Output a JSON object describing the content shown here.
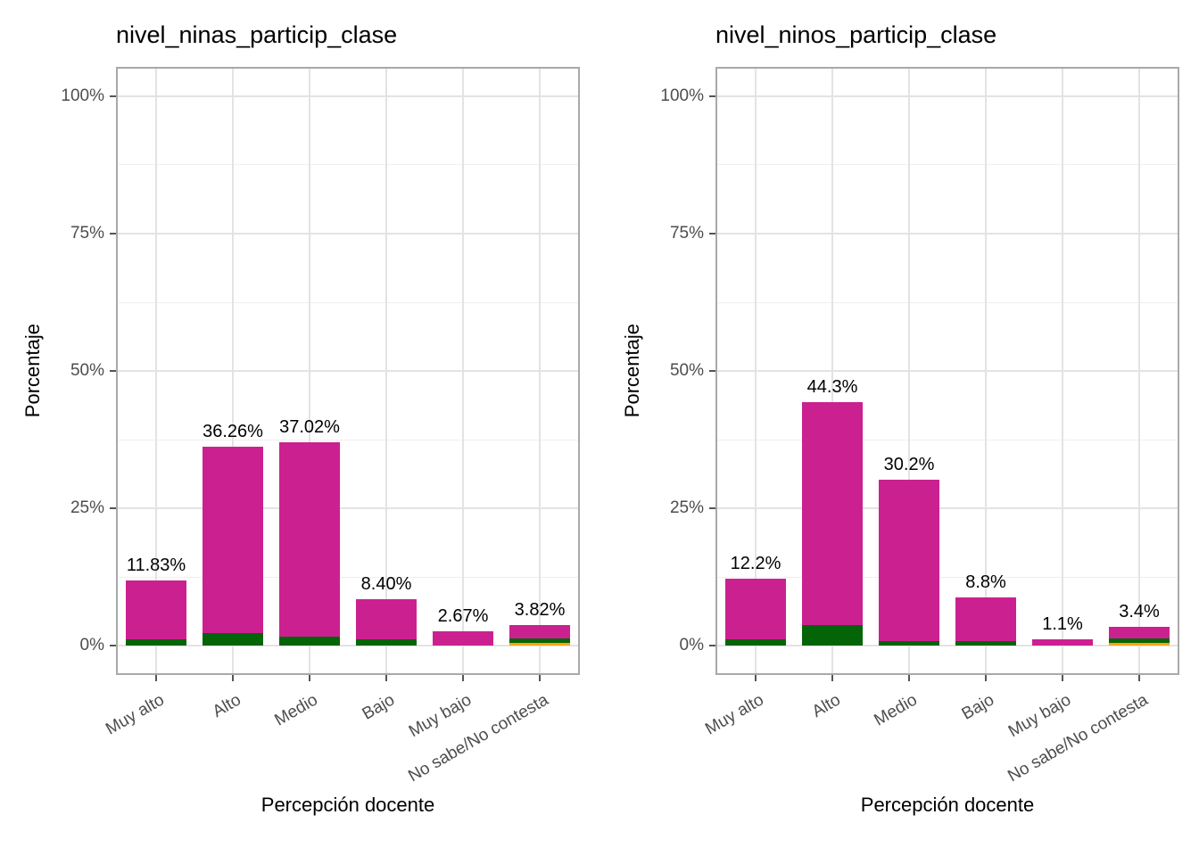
{
  "page": {
    "background": "#ffffff"
  },
  "y_axis": {
    "title": "Porcentaje",
    "tick_labels": [
      "0%",
      "25%",
      "50%",
      "75%",
      "100%"
    ],
    "tick_values": [
      0,
      25,
      50,
      75,
      100
    ],
    "minor_tick_values": [
      12.5,
      37.5,
      62.5,
      87.5
    ],
    "range": [
      0,
      100
    ],
    "expansion_mult": 0.05
  },
  "x_axis": {
    "title": "Percepción docente",
    "categories": [
      "Muy alto",
      "Alto",
      "Medio",
      "Bajo",
      "Muy bajo",
      "No sabe/No contesta"
    ],
    "label_angle_deg": 30
  },
  "colors": {
    "bar_magenta": "#CB2190",
    "bar_green": "#046408",
    "bar_orange": "#FFA502",
    "grid_major": "#E3E3E3",
    "grid_minor": "#EFEFEF",
    "panel_border": "#A9A9A9",
    "axis_tick": "#555555",
    "tick_label_text": "#4D4D4D",
    "value_label_text": "#000000"
  },
  "segment_order_bottom_to_top": [
    "orange",
    "green",
    "magenta"
  ],
  "chart_data": [
    {
      "type": "bar",
      "stacked": true,
      "title": "nivel_ninas_particip_clase",
      "xlabel": "Percepción docente",
      "ylabel": "Porcentaje",
      "ylim": [
        0,
        100
      ],
      "grid": true,
      "legend_position": "none",
      "categories": [
        "Muy alto",
        "Alto",
        "Medio",
        "Bajo",
        "Muy bajo",
        "No sabe/No contesta"
      ],
      "bars": [
        {
          "category": "Muy alto",
          "total": 11.83,
          "label": "11.83%",
          "segments": {
            "magenta": 10.63,
            "green": 1.2,
            "orange": 0
          }
        },
        {
          "category": "Alto",
          "total": 36.26,
          "label": "36.26%",
          "segments": {
            "magenta": 33.96,
            "green": 2.3,
            "orange": 0
          }
        },
        {
          "category": "Medio",
          "total": 37.02,
          "label": "37.02%",
          "segments": {
            "magenta": 35.32,
            "green": 1.7,
            "orange": 0
          }
        },
        {
          "category": "Bajo",
          "total": 8.4,
          "label": "8.40%",
          "segments": {
            "magenta": 7.2,
            "green": 1.2,
            "orange": 0
          }
        },
        {
          "category": "Muy bajo",
          "total": 2.67,
          "label": "2.67%",
          "segments": {
            "magenta": 2.67,
            "green": 0,
            "orange": 0
          }
        },
        {
          "category": "No sabe/No contesta",
          "total": 3.82,
          "label": "3.82%",
          "segments": {
            "magenta": 2.42,
            "green": 0.85,
            "orange": 0.55
          }
        }
      ]
    },
    {
      "type": "bar",
      "stacked": true,
      "title": "nivel_ninos_particip_clase",
      "xlabel": "Percepción docente",
      "ylabel": "Porcentaje",
      "ylim": [
        0,
        100
      ],
      "grid": true,
      "legend_position": "none",
      "categories": [
        "Muy alto",
        "Alto",
        "Medio",
        "Bajo",
        "Muy bajo",
        "No sabe/No contesta"
      ],
      "bars": [
        {
          "category": "Muy alto",
          "total": 12.2,
          "label": "12.2%",
          "segments": {
            "magenta": 11.0,
            "green": 1.2,
            "orange": 0
          }
        },
        {
          "category": "Alto",
          "total": 44.3,
          "label": "44.3%",
          "segments": {
            "magenta": 40.6,
            "green": 3.7,
            "orange": 0
          }
        },
        {
          "category": "Medio",
          "total": 30.2,
          "label": "30.2%",
          "segments": {
            "magenta": 29.3,
            "green": 0.9,
            "orange": 0
          }
        },
        {
          "category": "Bajo",
          "total": 8.8,
          "label": "8.8%",
          "segments": {
            "magenta": 8.0,
            "green": 0.8,
            "orange": 0
          }
        },
        {
          "category": "Muy bajo",
          "total": 1.1,
          "label": "1.1%",
          "segments": {
            "magenta": 1.1,
            "green": 0,
            "orange": 0
          }
        },
        {
          "category": "No sabe/No contesta",
          "total": 3.4,
          "label": "3.4%",
          "segments": {
            "magenta": 2.0,
            "green": 0.9,
            "orange": 0.5
          }
        }
      ]
    }
  ]
}
